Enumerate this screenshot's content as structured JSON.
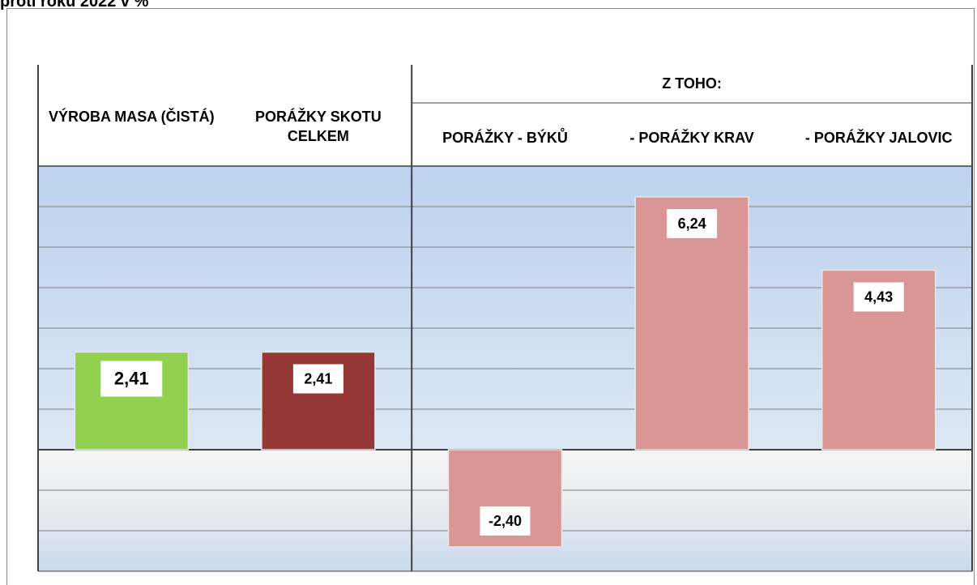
{
  "chart_data": {
    "type": "bar",
    "title": "proti roku 2022 v %",
    "group_label": "Z TOHO:",
    "categories": [
      "VÝROBA MASA (ČISTÁ)",
      "PORÁŽKY SKOTU CELKEM",
      "PORÁŽKY - BÝKŮ",
      "- PORÁŽKY KRAV",
      "- PORÁŽKY JALOVIC"
    ],
    "values": [
      2.41,
      2.41,
      -2.4,
      6.24,
      4.43
    ],
    "value_labels": [
      "2,41",
      "2,41",
      "-2,40",
      "6,24",
      "4,43"
    ],
    "colors": [
      "#92d050",
      "#953735",
      "#d99694",
      "#d99694",
      "#d99694"
    ],
    "ylim": [
      -3,
      7
    ],
    "yticks": [
      -2,
      -1,
      0,
      1,
      2,
      3,
      4,
      5,
      6
    ],
    "grid": true
  }
}
